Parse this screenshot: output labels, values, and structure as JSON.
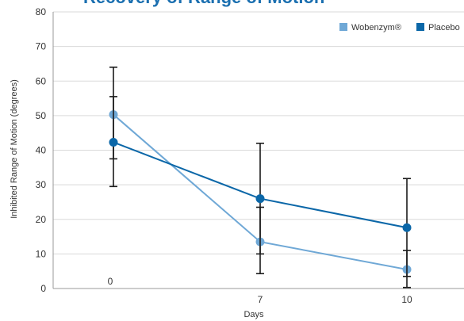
{
  "chart_data": {
    "type": "line",
    "title": "Recovery of Range of Motion",
    "xlabel": "Days",
    "ylabel": "Inhibited Range of Motion (degrees)",
    "x_tick_labels": [
      "0",
      "7",
      "10"
    ],
    "y_ticks": [
      0,
      10,
      20,
      30,
      40,
      50,
      60,
      70,
      80
    ],
    "ylim": [
      0,
      80
    ],
    "grid": true,
    "legend": "top-right",
    "series": [
      {
        "name": "Wobenzym®",
        "color": "#6fa8d6",
        "values": [
          50.3,
          13.5,
          5.5
        ],
        "error_high": [
          64,
          23.5,
          11
        ],
        "error_low": [
          37.5,
          4.3,
          0.3
        ]
      },
      {
        "name": "Placebo",
        "color": "#0b67a8",
        "values": [
          42.3,
          26,
          17.6
        ],
        "error_high": [
          55.5,
          42,
          31.8
        ],
        "error_low": [
          29.5,
          10,
          3.5
        ]
      }
    ]
  }
}
